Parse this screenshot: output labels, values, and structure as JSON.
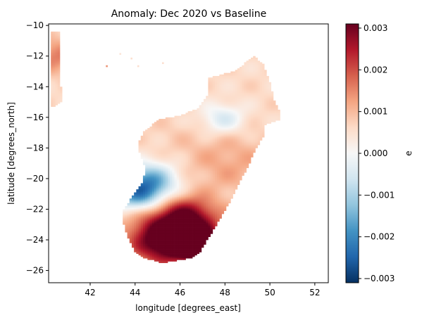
{
  "chart_data": {
    "type": "heatmap",
    "title": "Anomaly: Dec 2020 vs Baseline",
    "xlabel": "longitude [degrees_east]",
    "ylabel": "latitude [degrees_north]",
    "colorbar_label": "e",
    "colormap": "RdBu_r",
    "xlim": [
      40.15,
      52.6
    ],
    "ylim": [
      -26.8,
      -9.9
    ],
    "x_ticks": [
      {
        "value": 42,
        "label": "42"
      },
      {
        "value": 44,
        "label": "44"
      },
      {
        "value": 46,
        "label": "46"
      },
      {
        "value": 48,
        "label": "48"
      },
      {
        "value": 50,
        "label": "50"
      },
      {
        "value": 52,
        "label": "52"
      }
    ],
    "y_ticks": [
      {
        "value": -10,
        "label": "−10"
      },
      {
        "value": -12,
        "label": "−12"
      },
      {
        "value": -14,
        "label": "−14"
      },
      {
        "value": -16,
        "label": "−16"
      },
      {
        "value": -18,
        "label": "−18"
      },
      {
        "value": -20,
        "label": "−20"
      },
      {
        "value": -22,
        "label": "−22"
      },
      {
        "value": -24,
        "label": "−24"
      },
      {
        "value": -26,
        "label": "−26"
      }
    ],
    "colorbar": {
      "vmin": -0.0031,
      "vmax": 0.0031,
      "ticks": [
        {
          "value": 0.003,
          "label": "0.003"
        },
        {
          "value": 0.002,
          "label": "0.002"
        },
        {
          "value": 0.001,
          "label": "0.001"
        },
        {
          "value": 0.0,
          "label": "0.000"
        },
        {
          "value": -0.001,
          "label": "−0.001"
        },
        {
          "value": -0.002,
          "label": "−0.002"
        },
        {
          "value": -0.003,
          "label": "−0.003"
        }
      ]
    },
    "grid": false,
    "field_description": "Gridded anomaly values over land (Madagascar and a coastal strip near 40.5E); missing over ocean",
    "land_polygons": [
      [
        [
          47.3,
          -13.4
        ],
        [
          48.4,
          -13.0
        ],
        [
          49.3,
          -12.0
        ],
        [
          49.7,
          -12.5
        ],
        [
          50.0,
          -13.7
        ],
        [
          50.2,
          -14.9
        ],
        [
          50.4,
          -15.5
        ],
        [
          50.5,
          -16.1
        ],
        [
          49.8,
          -16.5
        ],
        [
          49.7,
          -17.3
        ],
        [
          49.3,
          -18.3
        ],
        [
          49.0,
          -19.3
        ],
        [
          48.6,
          -20.4
        ],
        [
          48.2,
          -21.6
        ],
        [
          47.8,
          -22.6
        ],
        [
          47.3,
          -23.8
        ],
        [
          46.9,
          -24.8
        ],
        [
          46.5,
          -25.2
        ],
        [
          45.2,
          -25.5
        ],
        [
          44.4,
          -25.2
        ],
        [
          44.0,
          -24.8
        ],
        [
          43.7,
          -23.9
        ],
        [
          43.5,
          -23.0
        ],
        [
          43.4,
          -22.2
        ],
        [
          43.7,
          -21.6
        ],
        [
          43.9,
          -21.1
        ],
        [
          44.3,
          -20.3
        ],
        [
          44.5,
          -19.4
        ],
        [
          44.3,
          -18.7
        ],
        [
          44.1,
          -17.8
        ],
        [
          44.4,
          -16.9
        ],
        [
          45.1,
          -16.1
        ],
        [
          46.0,
          -15.9
        ],
        [
          46.8,
          -15.4
        ],
        [
          47.2,
          -14.6
        ]
      ],
      [
        [
          40.2,
          -10.4
        ],
        [
          40.6,
          -10.4
        ],
        [
          40.7,
          -12.0
        ],
        [
          40.6,
          -13.0
        ],
        [
          40.7,
          -14.0
        ],
        [
          40.8,
          -14.9
        ],
        [
          40.4,
          -15.3
        ],
        [
          40.2,
          -15.3
        ]
      ]
    ],
    "anomaly_features": [
      {
        "lon": 46.0,
        "lat": -23.6,
        "value": 0.003,
        "radius": 1.3
      },
      {
        "lon": 46.7,
        "lat": -24.3,
        "value": 0.0026,
        "radius": 0.7
      },
      {
        "lon": 45.0,
        "lat": -24.2,
        "value": 0.0016,
        "radius": 1.0
      },
      {
        "lon": 46.3,
        "lat": -22.3,
        "value": 0.0014,
        "radius": 0.8
      },
      {
        "lon": 44.6,
        "lat": -20.3,
        "value": -0.0022,
        "radius": 0.9
      },
      {
        "lon": 44.0,
        "lat": -21.2,
        "value": -0.0012,
        "radius": 0.7
      },
      {
        "lon": 47.9,
        "lat": -16.1,
        "value": -0.0008,
        "radius": 0.7
      },
      {
        "lon": 45.5,
        "lat": -17.0,
        "value": 0.0004,
        "radius": 1.2
      },
      {
        "lon": 48.2,
        "lat": -19.0,
        "value": 0.0009,
        "radius": 1.5
      },
      {
        "lon": 49.2,
        "lat": -15.0,
        "value": 0.0003,
        "radius": 0.9
      },
      {
        "lon": 45.0,
        "lat": -22.7,
        "value": 0.0004,
        "radius": 0.8
      },
      {
        "lon": 40.45,
        "lat": -12.0,
        "value": 0.0013,
        "radius": 0.8
      }
    ],
    "background_anomaly": 0.0006,
    "scattered_points": [
      {
        "lon": 43.8,
        "lat": -12.1,
        "value": 0.0005
      },
      {
        "lon": 44.1,
        "lat": -12.6,
        "value": 0.0005
      },
      {
        "lon": 42.7,
        "lat": -12.6,
        "value": 0.0014
      },
      {
        "lon": 43.3,
        "lat": -11.8,
        "value": 0.0004
      },
      {
        "lon": 45.2,
        "lat": -12.4,
        "value": 0.0005
      }
    ]
  }
}
